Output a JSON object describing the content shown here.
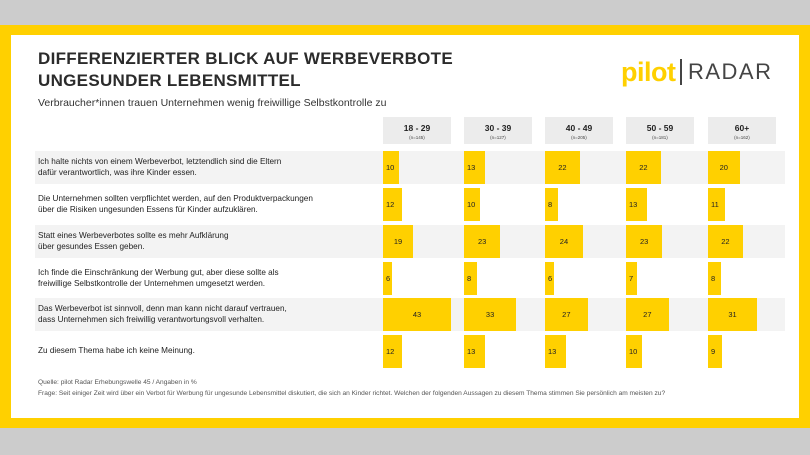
{
  "title_line1": "DIFFERENZIERTER BLICK AUF WERBEVERBOTE",
  "title_line2": "UNGESUNDER LEBENSMITTEL",
  "subtitle": "Verbraucher*innen trauen Unternehmen wenig freiwillige Selbstkontrolle zu",
  "logo": {
    "pilot": "pilot",
    "radar": "RADAR",
    "brand_color": "#ffd000"
  },
  "accent_color": "#ffd000",
  "source": "Quelle: pilot Radar Erhebungswelle 45 / Angaben in %",
  "question": "Frage: Seit einiger Zeit wird über ein Verbot für Werbung für ungesunde Lebensmittel diskutiert, die sich an Kinder richtet. Welchen der folgenden Aussagen zu diesem Thema stimmen Sie persönlich am meisten zu?",
  "chart_data": {
    "type": "bar",
    "orientation": "horizontal",
    "unit": "%",
    "categories": [
      "Ich halte nichts von einem Werbeverbot, letztendlich sind die Eltern\ndafür verantwortlich, was ihre Kinder essen.",
      "Die Unternehmen sollten verpflichtet werden, auf den Produktverpackungen\nüber die Risiken ungesunden Essens für Kinder aufzuklären.",
      "Statt eines Werbeverbotes sollte es mehr Aufklärung\nüber gesundes Essen geben.",
      "Ich finde die Einschränkung der Werbung gut, aber diese sollte als\nfreiwillige Selbstkontrolle der Unternehmen umgesetzt werden.",
      "Das Werbeverbot ist sinnvoll, denn man kann nicht darauf vertrauen,\ndass Unternehmen sich freiwillig verantwortungsvoll verhalten.",
      "Zu diesem Thema habe ich keine Meinung."
    ],
    "series": [
      {
        "name": "18 - 29",
        "n": "(n=145)",
        "values": [
          10,
          12,
          19,
          6,
          43,
          12
        ]
      },
      {
        "name": "30 - 39",
        "n": "(n=127)",
        "values": [
          13,
          10,
          23,
          8,
          33,
          13
        ]
      },
      {
        "name": "40 - 49",
        "n": "(n=205)",
        "values": [
          22,
          8,
          24,
          6,
          27,
          13
        ]
      },
      {
        "name": "50 - 59",
        "n": "(n=181)",
        "values": [
          22,
          13,
          23,
          7,
          27,
          10
        ]
      },
      {
        "name": "60+",
        "n": "(n=162)",
        "values": [
          20,
          11,
          22,
          8,
          31,
          9
        ]
      }
    ],
    "xlim": [
      0,
      43
    ]
  }
}
